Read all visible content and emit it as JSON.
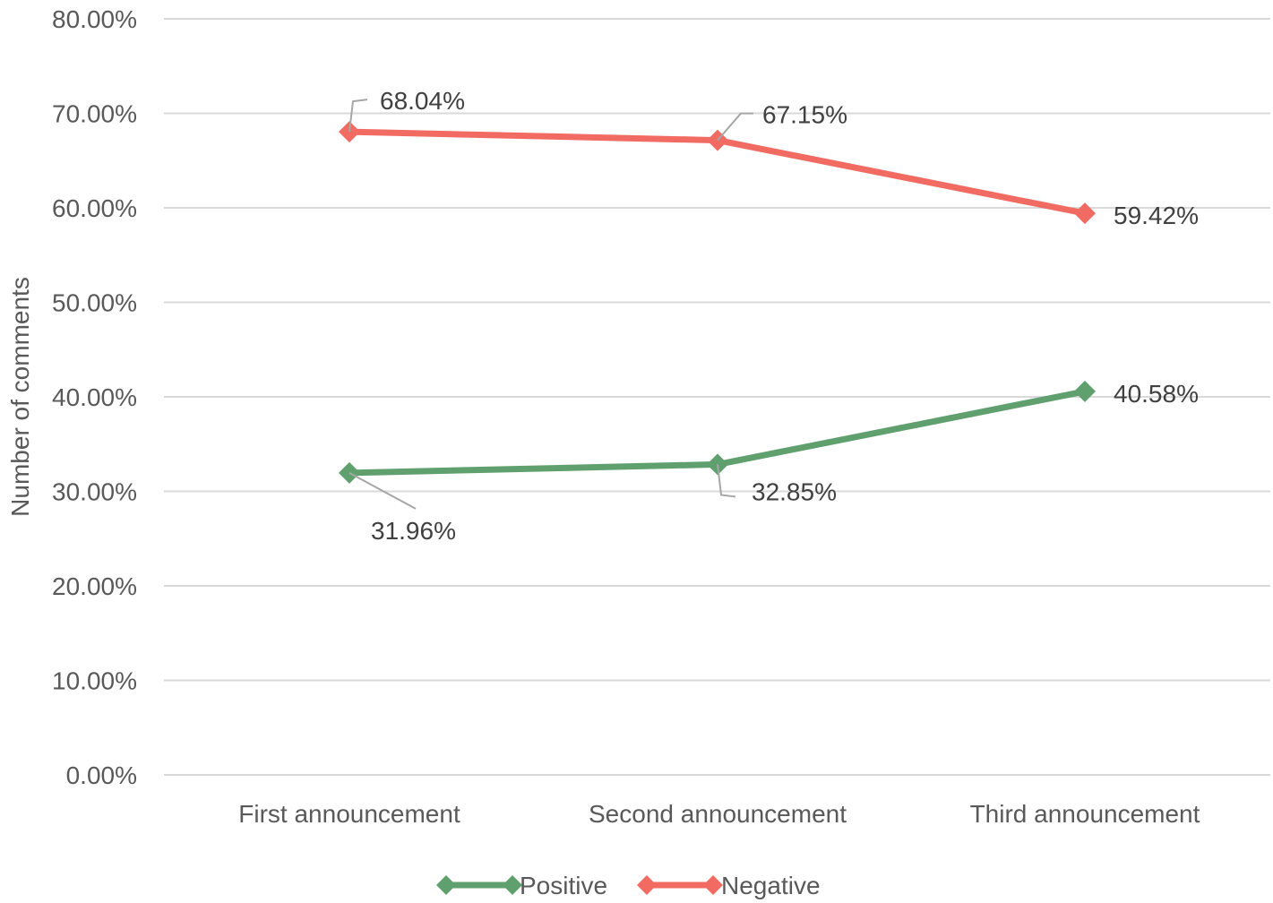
{
  "chart_data": {
    "type": "line",
    "categories": [
      "First announcement",
      "Second announcement",
      "Third announcement"
    ],
    "series": [
      {
        "name": "Positive",
        "color": "#5fa06e",
        "values": [
          31.96,
          32.85,
          40.58
        ],
        "labels": [
          "31.96%",
          "32.85%",
          "40.58%"
        ]
      },
      {
        "name": "Negative",
        "color": "#f26b62",
        "values": [
          68.04,
          67.15,
          59.42
        ],
        "labels": [
          "68.04%",
          "67.15%",
          "59.42%"
        ]
      }
    ],
    "ylabel": "Number of comments",
    "xlabel": "",
    "ylim": [
      0,
      80
    ],
    "yticks": [
      "0.00%",
      "10.00%",
      "20.00%",
      "30.00%",
      "40.00%",
      "50.00%",
      "60.00%",
      "70.00%",
      "80.00%"
    ],
    "grid": true,
    "legend_position": "bottom",
    "marker": "diamond"
  }
}
